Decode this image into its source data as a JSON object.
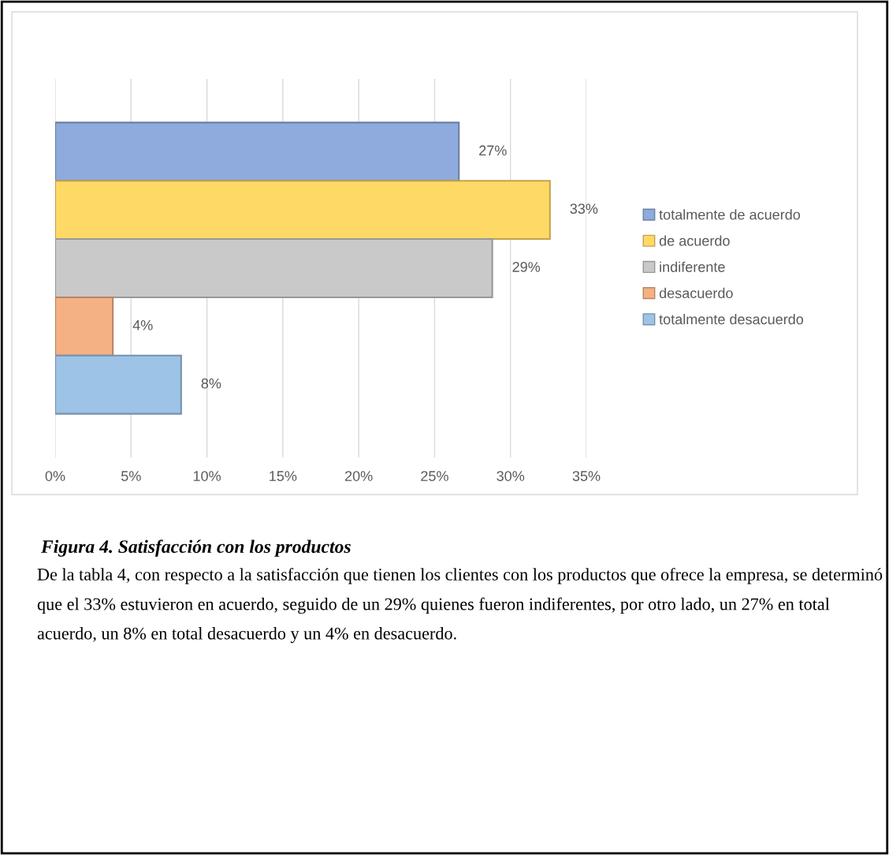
{
  "chart_data": {
    "type": "bar",
    "orientation": "horizontal",
    "categories": [
      null
    ],
    "series": [
      {
        "name": "totalmente de acuerdo",
        "color": "#8faadc",
        "values": [
          26.6
        ],
        "value_labels": [
          "27%"
        ]
      },
      {
        "name": "de acuerdo",
        "color": "#ffd966",
        "values": [
          32.6
        ],
        "value_labels": [
          "33%"
        ]
      },
      {
        "name": "indiferente",
        "color": "#c9c9c9",
        "values": [
          28.8
        ],
        "value_labels": [
          "29%"
        ]
      },
      {
        "name": "desacuerdo",
        "color": "#f4b183",
        "values": [
          3.8
        ],
        "value_labels": [
          "4%"
        ]
      },
      {
        "name": "totalmente desacuerdo",
        "color": "#9dc3e6",
        "values": [
          8.3
        ],
        "value_labels": [
          "8%"
        ]
      }
    ],
    "xlim": [
      0,
      35
    ],
    "xticks": [
      {
        "value": 0,
        "label": "0%"
      },
      {
        "value": 5,
        "label": "5%"
      },
      {
        "value": 10,
        "label": "10%"
      },
      {
        "value": 15,
        "label": "15%"
      },
      {
        "value": 20,
        "label": "20%"
      },
      {
        "value": 25,
        "label": "25%"
      },
      {
        "value": 30,
        "label": "30%"
      },
      {
        "value": 35,
        "label": "35%"
      }
    ],
    "grid": "x",
    "legend": "right",
    "tick_labels": "x",
    "annotations": [
      "Figura 4. Satisfacción con los productos",
      "De la tabla 4, con respecto a la satisfacción que tienen los clientes con los productos que ofrece la empresa, se determinó que el 33% estuvieron en acuerdo, seguido de un 29% quienes fueron indiferentes, por otro lado, un 27% en total acuerdo, un 8% en total desacuerdo y un 4% en desacuerdo."
    ]
  }
}
